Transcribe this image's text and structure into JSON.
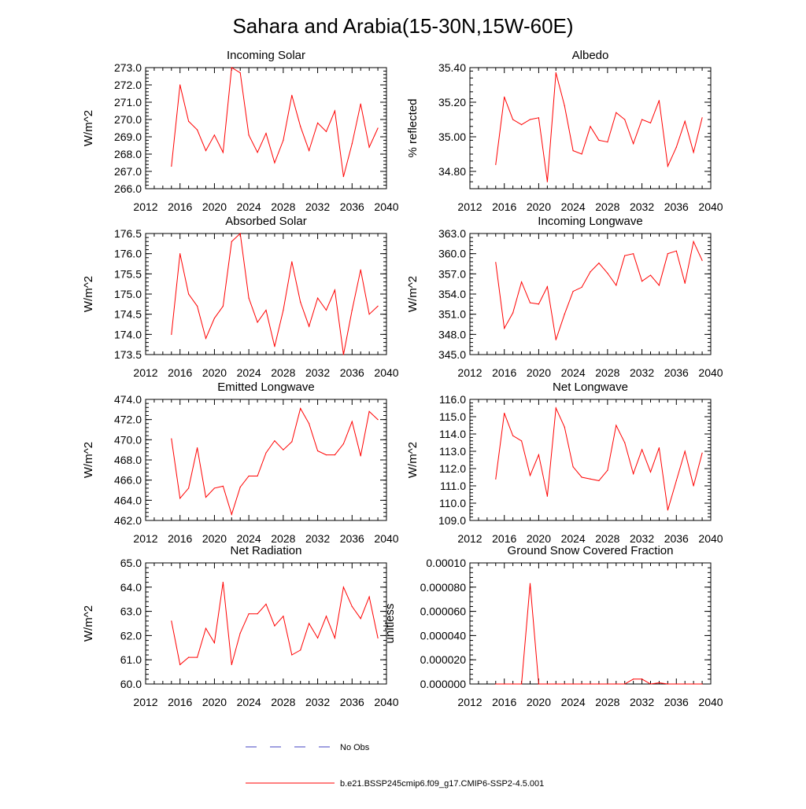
{
  "figure": {
    "title": "Sahara and Arabia(15-30N,15W-60E)"
  },
  "legend": {
    "entries": [
      {
        "label": "No Obs",
        "color": "#4040c0",
        "style": "dashed"
      },
      {
        "label": "b.e21.BSSP245cmip6.f09_g17.CMIP6-SSP2-4.5.001",
        "color": "#ff0000",
        "style": "solid"
      }
    ]
  },
  "chart_data": [
    {
      "type": "line",
      "title": "Incoming Solar",
      "ylabel": "W/m^2",
      "xlim": [
        2012,
        2040
      ],
      "ylim": [
        266.0,
        273.0
      ],
      "xticks": [
        "2012",
        "2016",
        "2020",
        "2024",
        "2028",
        "2032",
        "2036",
        "2040"
      ],
      "yticks": [
        "266.0",
        "267.0",
        "268.0",
        "269.0",
        "270.0",
        "271.0",
        "272.0",
        "273.0"
      ],
      "x": [
        2015,
        2016,
        2017,
        2018,
        2019,
        2020,
        2021,
        2022,
        2023,
        2024,
        2025,
        2026,
        2027,
        2028,
        2029,
        2030,
        2031,
        2032,
        2033,
        2034,
        2035,
        2036,
        2037,
        2038,
        2039
      ],
      "series": [
        {
          "color": "#ff0000",
          "values": [
            267.3,
            272.0,
            269.9,
            269.4,
            268.2,
            269.1,
            268.1,
            273.0,
            272.7,
            269.1,
            268.1,
            269.2,
            267.5,
            268.8,
            271.4,
            269.6,
            268.2,
            269.8,
            269.3,
            270.5,
            266.7,
            268.6,
            270.9,
            268.4,
            269.5
          ]
        }
      ]
    },
    {
      "type": "line",
      "title": "Albedo",
      "ylabel": "% reflected",
      "xlim": [
        2012,
        2040
      ],
      "ylim": [
        34.7,
        35.4
      ],
      "xticks": [
        "2012",
        "2016",
        "2020",
        "2024",
        "2028",
        "2032",
        "2036",
        "2040"
      ],
      "yticks": [
        "34.80",
        "35.00",
        "35.20",
        "35.40"
      ],
      "ytick_values": [
        34.8,
        35.0,
        35.2,
        35.4
      ],
      "x": [
        2015,
        2016,
        2017,
        2018,
        2019,
        2020,
        2021,
        2022,
        2023,
        2024,
        2025,
        2026,
        2027,
        2028,
        2029,
        2030,
        2031,
        2032,
        2033,
        2034,
        2035,
        2036,
        2037,
        2038,
        2039
      ],
      "series": [
        {
          "color": "#ff0000",
          "values": [
            34.84,
            35.23,
            35.1,
            35.07,
            35.1,
            35.11,
            34.74,
            35.37,
            35.18,
            34.92,
            34.9,
            35.06,
            34.98,
            34.97,
            35.14,
            35.1,
            34.96,
            35.1,
            35.08,
            35.21,
            34.83,
            34.94,
            35.09,
            34.91,
            35.11
          ]
        }
      ]
    },
    {
      "type": "line",
      "title": "Absorbed Solar",
      "ylabel": "W/m^2",
      "xlim": [
        2012,
        2040
      ],
      "ylim": [
        173.5,
        176.5
      ],
      "xticks": [
        "2012",
        "2016",
        "2020",
        "2024",
        "2028",
        "2032",
        "2036",
        "2040"
      ],
      "yticks": [
        "173.5",
        "174.0",
        "174.5",
        "175.0",
        "175.5",
        "176.0",
        "176.5"
      ],
      "x": [
        2015,
        2016,
        2017,
        2018,
        2019,
        2020,
        2021,
        2022,
        2023,
        2024,
        2025,
        2026,
        2027,
        2028,
        2029,
        2030,
        2031,
        2032,
        2033,
        2034,
        2035,
        2036,
        2037,
        2038,
        2039
      ],
      "series": [
        {
          "color": "#ff0000",
          "values": [
            174.0,
            176.0,
            175.0,
            174.7,
            173.9,
            174.4,
            174.7,
            176.3,
            176.5,
            174.9,
            174.3,
            174.6,
            173.7,
            174.6,
            175.8,
            174.8,
            174.2,
            174.9,
            174.6,
            175.1,
            173.5,
            174.6,
            175.6,
            174.5,
            174.7
          ]
        }
      ]
    },
    {
      "type": "line",
      "title": "Incoming Longwave",
      "ylabel": "W/m^2",
      "xlim": [
        2012,
        2040
      ],
      "ylim": [
        345.0,
        363.0
      ],
      "xticks": [
        "2012",
        "2016",
        "2020",
        "2024",
        "2028",
        "2032",
        "2036",
        "2040"
      ],
      "yticks": [
        "345.0",
        "348.0",
        "351.0",
        "354.0",
        "357.0",
        "360.0",
        "363.0"
      ],
      "x": [
        2015,
        2016,
        2017,
        2018,
        2019,
        2020,
        2021,
        2022,
        2023,
        2024,
        2025,
        2026,
        2027,
        2028,
        2029,
        2030,
        2031,
        2032,
        2033,
        2034,
        2035,
        2036,
        2037,
        2038,
        2039
      ],
      "series": [
        {
          "color": "#ff0000",
          "values": [
            358.7,
            348.9,
            351.2,
            355.8,
            352.7,
            352.5,
            355.1,
            347.2,
            351.0,
            354.4,
            355.0,
            357.3,
            358.6,
            357.1,
            355.3,
            359.7,
            360.0,
            355.9,
            356.8,
            355.3,
            360.0,
            360.4,
            355.6,
            361.8,
            359.0
          ]
        }
      ]
    },
    {
      "type": "line",
      "title": "Emitted Longwave",
      "ylabel": "W/m^2",
      "xlim": [
        2012,
        2040
      ],
      "ylim": [
        462.0,
        474.0
      ],
      "xticks": [
        "2012",
        "2016",
        "2020",
        "2024",
        "2028",
        "2032",
        "2036",
        "2040"
      ],
      "yticks": [
        "462.0",
        "464.0",
        "466.0",
        "468.0",
        "470.0",
        "472.0",
        "474.0"
      ],
      "x": [
        2015,
        2016,
        2017,
        2018,
        2019,
        2020,
        2021,
        2022,
        2023,
        2024,
        2025,
        2026,
        2027,
        2028,
        2029,
        2030,
        2031,
        2032,
        2033,
        2034,
        2035,
        2036,
        2037,
        2038,
        2039
      ],
      "series": [
        {
          "color": "#ff0000",
          "values": [
            470.1,
            464.2,
            465.2,
            469.2,
            464.3,
            465.2,
            465.4,
            462.6,
            465.3,
            466.4,
            466.4,
            468.7,
            469.9,
            469.0,
            469.8,
            473.1,
            471.6,
            468.9,
            468.5,
            468.5,
            469.6,
            471.8,
            468.4,
            472.8,
            472.0
          ]
        }
      ]
    },
    {
      "type": "line",
      "title": "Net Longwave",
      "ylabel": "W/m^2",
      "xlim": [
        2012,
        2040
      ],
      "ylim": [
        109.0,
        116.0
      ],
      "xticks": [
        "2012",
        "2016",
        "2020",
        "2024",
        "2028",
        "2032",
        "2036",
        "2040"
      ],
      "yticks": [
        "109.0",
        "110.0",
        "111.0",
        "112.0",
        "113.0",
        "114.0",
        "115.0",
        "116.0"
      ],
      "x": [
        2015,
        2016,
        2017,
        2018,
        2019,
        2020,
        2021,
        2022,
        2023,
        2024,
        2025,
        2026,
        2027,
        2028,
        2029,
        2030,
        2031,
        2032,
        2033,
        2034,
        2035,
        2036,
        2037,
        2038,
        2039
      ],
      "series": [
        {
          "color": "#ff0000",
          "values": [
            111.4,
            115.2,
            113.9,
            113.6,
            111.6,
            112.8,
            110.4,
            115.5,
            114.4,
            112.1,
            111.5,
            111.4,
            111.3,
            111.9,
            114.5,
            113.5,
            111.7,
            113.1,
            111.8,
            113.2,
            109.6,
            111.3,
            113.0,
            111.0,
            112.9
          ]
        }
      ]
    },
    {
      "type": "line",
      "title": "Net Radiation",
      "ylabel": "W/m^2",
      "xlim": [
        2012,
        2040
      ],
      "ylim": [
        60.0,
        65.0
      ],
      "xticks": [
        "2012",
        "2016",
        "2020",
        "2024",
        "2028",
        "2032",
        "2036",
        "2040"
      ],
      "yticks": [
        "60.0",
        "61.0",
        "62.0",
        "63.0",
        "64.0",
        "65.0"
      ],
      "x": [
        2015,
        2016,
        2017,
        2018,
        2019,
        2020,
        2021,
        2022,
        2023,
        2024,
        2025,
        2026,
        2027,
        2028,
        2029,
        2030,
        2031,
        2032,
        2033,
        2034,
        2035,
        2036,
        2037,
        2038,
        2039
      ],
      "series": [
        {
          "color": "#ff0000",
          "values": [
            62.6,
            60.8,
            61.1,
            61.1,
            62.3,
            61.7,
            64.2,
            60.8,
            62.1,
            62.9,
            62.9,
            63.3,
            62.4,
            62.8,
            61.2,
            61.4,
            62.5,
            61.9,
            62.8,
            61.9,
            64.0,
            63.2,
            62.7,
            63.6,
            61.9
          ]
        }
      ]
    },
    {
      "type": "line",
      "title": "Ground Snow Covered Fraction",
      "ylabel": "unitless",
      "xlim": [
        2012,
        2040
      ],
      "ylim": [
        0,
        0.0001
      ],
      "xticks": [
        "2012",
        "2016",
        "2020",
        "2024",
        "2028",
        "2032",
        "2036",
        "2040"
      ],
      "yticks": [
        "0.000000",
        "0.000020",
        "0.000040",
        "0.000060",
        "0.000080",
        "0.00010"
      ],
      "ytick_values": [
        0,
        2e-05,
        4e-05,
        6e-05,
        8e-05,
        0.0001
      ],
      "x": [
        2015,
        2016,
        2017,
        2018,
        2019,
        2020,
        2021,
        2022,
        2023,
        2024,
        2025,
        2026,
        2027,
        2028,
        2029,
        2030,
        2031,
        2032,
        2033,
        2034,
        2035,
        2036,
        2037,
        2038,
        2039
      ],
      "series": [
        {
          "color": "#ff0000",
          "values": [
            0,
            0,
            0,
            0,
            8.3e-05,
            0,
            0,
            0,
            0,
            0,
            0,
            0,
            0,
            0,
            0,
            0,
            4e-06,
            4e-06,
            0,
            1e-06,
            0,
            0,
            0,
            0,
            0
          ]
        }
      ]
    }
  ]
}
